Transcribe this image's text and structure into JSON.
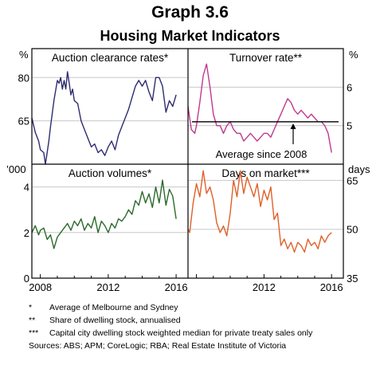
{
  "title": "Graph 3.6",
  "subtitle": "Housing Market Indicators",
  "colors": {
    "clearance": "#2e2c6e",
    "turnover": "#c0388f",
    "volumes": "#2b6a2b",
    "days": "#e0602a",
    "grid": "#c8c8c8",
    "frame": "#000000"
  },
  "notes": [
    {
      "mark": "*",
      "text": "Average of Melbourne and Sydney"
    },
    {
      "mark": "**",
      "text": "Share of dwelling stock, annualised"
    },
    {
      "mark": "***",
      "text": "Capital city dwelling stock weighted median for private treaty sales only"
    }
  ],
  "sources": "Sources:  ABS; APM; CoreLogic; RBA; Real Estate Institute of Victoria",
  "chart_data": [
    {
      "type": "line",
      "title": "Auction clearance rates*",
      "unit_label": "%",
      "y_axis_side": "left",
      "ylim": [
        50,
        90
      ],
      "yticks": [
        65,
        80
      ],
      "xlim": [
        2007.5,
        2016.7
      ],
      "xticks": [
        2008,
        2012,
        2016
      ],
      "series": [
        {
          "x": [
            2007.5,
            2007.7,
            2007.9,
            2008.0,
            2008.2,
            2008.3,
            2008.4,
            2008.5,
            2008.6,
            2008.8,
            2009.0,
            2009.1,
            2009.2,
            2009.3,
            2009.4,
            2009.5,
            2009.6,
            2009.7,
            2009.8,
            2009.9,
            2010.0,
            2010.2,
            2010.4,
            2010.6,
            2010.8,
            2011.0,
            2011.2,
            2011.4,
            2011.6,
            2011.8,
            2012.0,
            2012.2,
            2012.4,
            2012.6,
            2012.8,
            2013.0,
            2013.2,
            2013.4,
            2013.6,
            2013.8,
            2014.0,
            2014.2,
            2014.4,
            2014.6,
            2014.8,
            2015.0,
            2015.2,
            2015.4,
            2015.6,
            2015.8,
            2016.0
          ],
          "values": [
            66,
            61,
            58,
            55,
            54,
            50,
            54,
            58,
            63,
            72,
            79,
            78,
            80,
            76,
            79,
            76,
            82,
            78,
            74,
            76,
            72,
            71,
            65,
            62,
            59,
            56,
            57,
            54,
            55,
            53,
            56,
            58,
            55,
            60,
            63,
            66,
            69,
            73,
            77,
            79,
            77,
            79,
            75,
            72,
            80,
            80,
            77,
            68,
            72,
            70,
            74
          ]
        }
      ]
    },
    {
      "type": "line",
      "title": "Turnover rate**",
      "unit_label": "%",
      "y_axis_side": "right",
      "ylim": [
        4,
        7
      ],
      "yticks": [
        5,
        6
      ],
      "xlim": [
        2007.5,
        2016.7
      ],
      "xticks": [
        2008,
        2012,
        2016
      ],
      "annotation": "Average since 2008",
      "average": 5.1,
      "series": [
        {
          "x": [
            2007.5,
            2007.7,
            2007.9,
            2008.0,
            2008.2,
            2008.4,
            2008.6,
            2008.8,
            2009.0,
            2009.2,
            2009.4,
            2009.6,
            2009.8,
            2010.0,
            2010.2,
            2010.4,
            2010.6,
            2010.8,
            2011.0,
            2011.2,
            2011.4,
            2011.6,
            2011.8,
            2012.0,
            2012.2,
            2012.4,
            2012.6,
            2012.8,
            2013.0,
            2013.2,
            2013.4,
            2013.6,
            2013.8,
            2014.0,
            2014.2,
            2014.4,
            2014.6,
            2014.8,
            2015.0,
            2015.2,
            2015.4,
            2015.6,
            2015.8,
            2016.0
          ],
          "values": [
            5.5,
            4.9,
            4.8,
            5.0,
            5.6,
            6.3,
            6.6,
            6.0,
            5.3,
            5.0,
            5.0,
            4.8,
            5.0,
            5.1,
            4.9,
            4.8,
            4.8,
            4.6,
            4.7,
            4.8,
            4.7,
            4.6,
            4.7,
            4.8,
            4.8,
            4.7,
            4.9,
            5.1,
            5.3,
            5.5,
            5.7,
            5.6,
            5.4,
            5.3,
            5.4,
            5.3,
            5.2,
            5.3,
            5.2,
            5.1,
            5.1,
            5.0,
            4.8,
            4.3
          ]
        }
      ]
    },
    {
      "type": "line",
      "title": "Auction volumes*",
      "unit_label": "’000",
      "y_axis_side": "left",
      "ylim": [
        0,
        5
      ],
      "yticks": [
        0,
        2,
        4
      ],
      "xlim": [
        2007.5,
        2016.7
      ],
      "xticks": [
        2008,
        2012,
        2016
      ],
      "series": [
        {
          "x": [
            2007.5,
            2007.7,
            2007.9,
            2008.0,
            2008.2,
            2008.4,
            2008.6,
            2008.8,
            2009.0,
            2009.2,
            2009.4,
            2009.6,
            2009.8,
            2010.0,
            2010.2,
            2010.4,
            2010.6,
            2010.8,
            2011.0,
            2011.2,
            2011.4,
            2011.6,
            2011.8,
            2012.0,
            2012.2,
            2012.4,
            2012.6,
            2012.8,
            2013.0,
            2013.2,
            2013.4,
            2013.6,
            2013.8,
            2014.0,
            2014.2,
            2014.4,
            2014.6,
            2014.8,
            2015.0,
            2015.2,
            2015.4,
            2015.6,
            2015.8,
            2016.0
          ],
          "values": [
            2.0,
            2.3,
            1.9,
            2.1,
            2.2,
            1.7,
            1.9,
            1.3,
            1.8,
            2.0,
            2.2,
            2.4,
            2.1,
            2.5,
            2.3,
            2.6,
            2.1,
            2.4,
            2.2,
            2.7,
            2.0,
            2.5,
            2.3,
            2.0,
            2.4,
            2.2,
            2.6,
            2.5,
            2.7,
            3.0,
            2.8,
            3.4,
            3.2,
            3.8,
            3.3,
            3.7,
            3.1,
            4.0,
            3.3,
            4.3,
            3.2,
            3.9,
            3.6,
            2.6
          ]
        }
      ]
    },
    {
      "type": "line",
      "title": "Days on market***",
      "unit_label": "days",
      "y_axis_side": "right",
      "ylim": [
        35,
        70
      ],
      "yticks": [
        35,
        50,
        65
      ],
      "xlim": [
        2007.5,
        2016.7
      ],
      "xticks": [
        2008,
        2012,
        2016
      ],
      "series": [
        {
          "x": [
            2007.5,
            2007.6,
            2007.8,
            2008.0,
            2008.2,
            2008.4,
            2008.6,
            2008.8,
            2009.0,
            2009.2,
            2009.4,
            2009.6,
            2009.8,
            2010.0,
            2010.2,
            2010.4,
            2010.6,
            2010.8,
            2011.0,
            2011.2,
            2011.4,
            2011.6,
            2011.8,
            2012.0,
            2012.2,
            2012.4,
            2012.6,
            2012.8,
            2013.0,
            2013.2,
            2013.4,
            2013.6,
            2013.8,
            2014.0,
            2014.2,
            2014.4,
            2014.6,
            2014.8,
            2015.0,
            2015.2,
            2015.4,
            2015.6,
            2015.8,
            2016.0
          ],
          "values": [
            50,
            49,
            58,
            64,
            60,
            68,
            61,
            63,
            59,
            52,
            49,
            51,
            48,
            55,
            65,
            60,
            68,
            61,
            66,
            63,
            60,
            64,
            57,
            62,
            59,
            63,
            53,
            55,
            45,
            47,
            44,
            46,
            43,
            46,
            45,
            43,
            47,
            45,
            46,
            44,
            48,
            46,
            48,
            49
          ]
        }
      ]
    }
  ]
}
